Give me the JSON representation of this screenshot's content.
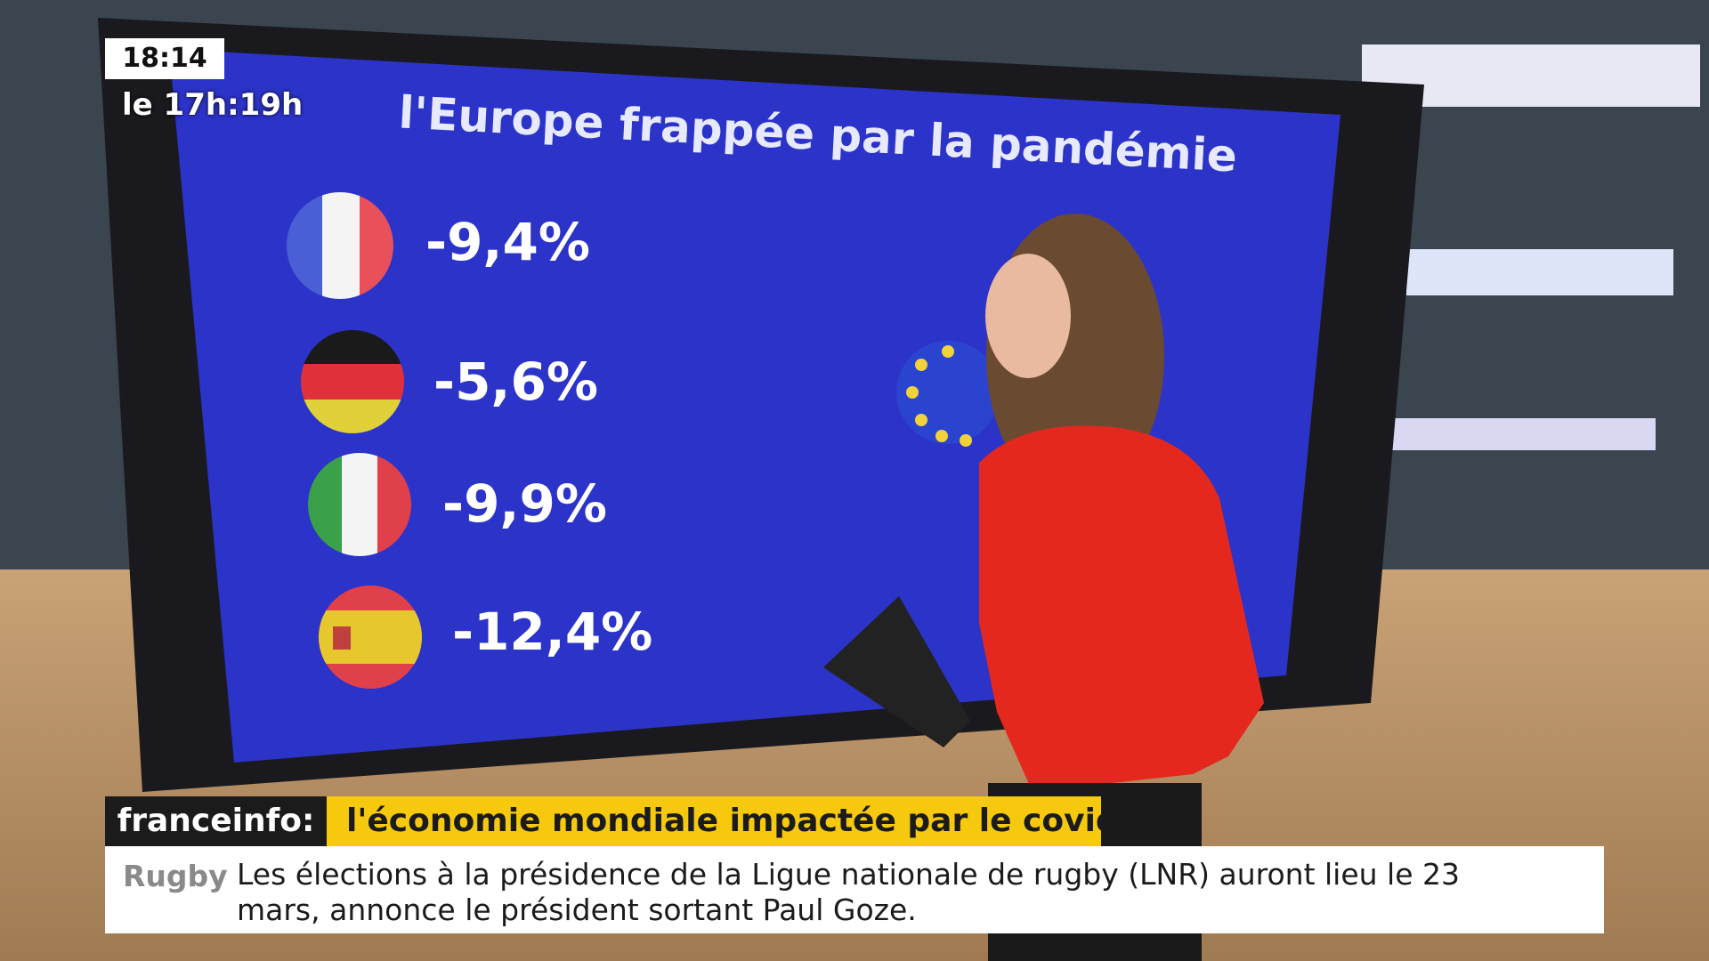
{
  "overlay": {
    "clock": "18:14",
    "program": "le 17h:19h"
  },
  "screen": {
    "title": "l'Europe frappée par la pandémie",
    "countries": [
      {
        "value": "-9,4%"
      },
      {
        "value": "-5,6%"
      },
      {
        "value": "-9,9%"
      },
      {
        "value": "-12,4%"
      }
    ]
  },
  "banner": {
    "channel": "franceinfo:",
    "headline": "l'économie mondiale impactée par le covid"
  },
  "ticker": {
    "category": "Rugby",
    "lines": [
      "Les élections à la présidence de la Ligue nationale de rugby (LNR) auront lieu le 23",
      "mars, annonce le président sortant Paul Goze."
    ]
  }
}
